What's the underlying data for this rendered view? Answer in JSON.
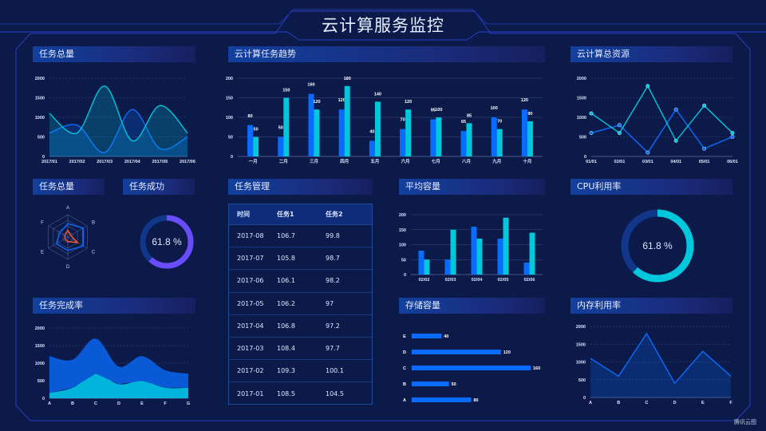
{
  "header": {
    "title": "云计算服务监控"
  },
  "panels": {
    "p1": "任务总量",
    "p2": "云计算任务趋势",
    "p3": "云计算总资源",
    "p4": "任务总量",
    "p5": "任务成功",
    "p6": "任务管理",
    "p7": "平均容量",
    "p8": "CPU利用率",
    "p9": "任务完成率",
    "p10": "存储容量",
    "p11": "内存利用率"
  },
  "table": {
    "headers": [
      "时间",
      "任务1",
      "任务2"
    ],
    "rows": [
      [
        "2017-08",
        "106.7",
        "99.8"
      ],
      [
        "2017-07",
        "105.8",
        "98.7"
      ],
      [
        "2017-06",
        "106.1",
        "98.2"
      ],
      [
        "2017-05",
        "106.2",
        "97"
      ],
      [
        "2017-04",
        "106.8",
        "97.2"
      ],
      [
        "2017-03",
        "108.4",
        "97.7"
      ],
      [
        "2017-02",
        "109.3",
        "100.1"
      ],
      [
        "2017-01",
        "108.5",
        "104.5"
      ]
    ]
  },
  "brand": "腾讯云图",
  "colors": {
    "blue": "#0a6cff",
    "cyan": "#00c8dc",
    "orange": "#ff5a2a",
    "purple": "#6a4cff",
    "bg": "#0c1a4a"
  },
  "chart_data": [
    {
      "id": "task-total-line",
      "type": "area",
      "smooth": true,
      "categories": [
        "2017/01",
        "2017/02",
        "2017/03",
        "2017/04",
        "2017/05",
        "2017/06"
      ],
      "yticks": [
        "0",
        "500",
        "1000",
        "1500",
        "2000"
      ],
      "ylim": [
        0,
        2000
      ],
      "grid": true,
      "series": [
        {
          "values": [
            600,
            800,
            100,
            1200,
            200,
            500
          ],
          "color": "#0a6cff"
        },
        {
          "values": [
            1100,
            600,
            1800,
            400,
            1300,
            600
          ],
          "color": "#00c8dc"
        }
      ]
    },
    {
      "id": "task-trend-bar",
      "type": "bar",
      "categories": [
        "一月",
        "二月",
        "三月",
        "四月",
        "五月",
        "六月",
        "七月",
        "八月",
        "九月",
        "十月"
      ],
      "yticks": [
        "0",
        "50",
        "100",
        "150",
        "200"
      ],
      "ylim": [
        0,
        200
      ],
      "grid": true,
      "labels": true,
      "series": [
        {
          "values": [
            80,
            50,
            160,
            120,
            40,
            70,
            95,
            65,
            100,
            120
          ],
          "color": "#0a6cff"
        },
        {
          "values": [
            50,
            150,
            120,
            180,
            140,
            120,
            100,
            85,
            70,
            90
          ],
          "color": "#00c8dc"
        }
      ]
    },
    {
      "id": "total-resource-line",
      "type": "line",
      "categories": [
        "01/01",
        "02/01",
        "03/01",
        "04/01",
        "05/01",
        "06/01"
      ],
      "yticks": [
        "0",
        "500",
        "1000",
        "1500",
        "2000"
      ],
      "ylim": [
        0,
        2000
      ],
      "grid": true,
      "markers": true,
      "series": [
        {
          "values": [
            600,
            800,
            100,
            1200,
            200,
            500
          ],
          "color": "#0a6cff"
        },
        {
          "values": [
            1100,
            600,
            1800,
            400,
            1300,
            600
          ],
          "color": "#00c8dc"
        }
      ]
    },
    {
      "id": "task-radar",
      "type": "radar",
      "indicators": [
        "A",
        "B",
        "C",
        "D",
        "E",
        "F"
      ],
      "max": 100,
      "series": [
        {
          "values": [
            60,
            80,
            80,
            60,
            60,
            40
          ],
          "color": "#0a6cff"
        },
        {
          "values": [
            30,
            15,
            50,
            20,
            15,
            15
          ],
          "color": "#ff5a2a"
        }
      ]
    },
    {
      "id": "task-success-donut",
      "type": "pie",
      "value": 61.8,
      "label": "61.8 %",
      "color": "#6a4cff"
    },
    {
      "id": "avg-capacity-bar",
      "type": "bar",
      "categories": [
        "02/02",
        "02/03",
        "02/04",
        "02/05",
        "02/06"
      ],
      "yticks": [
        "0",
        "50",
        "100",
        "150",
        "200"
      ],
      "ylim": [
        0,
        200
      ],
      "grid": true,
      "series": [
        {
          "values": [
            80,
            50,
            160,
            120,
            40
          ],
          "color": "#0a6cff"
        },
        {
          "values": [
            50,
            150,
            120,
            190,
            140
          ],
          "color": "#00c8dc"
        }
      ]
    },
    {
      "id": "cpu-donut",
      "type": "pie",
      "value": 61.8,
      "label": "61.8 %",
      "color": "#00c8dc"
    },
    {
      "id": "completion-area",
      "type": "area",
      "stacked": true,
      "smooth": true,
      "categories": [
        "A",
        "B",
        "C",
        "D",
        "E",
        "F",
        "G"
      ],
      "yticks": [
        "0",
        "500",
        "1000",
        "1500",
        "2000"
      ],
      "ylim": [
        0,
        2000
      ],
      "grid": true,
      "series": [
        {
          "values": [
            150,
            300,
            700,
            400,
            500,
            300,
            300
          ],
          "color": "#00b4dc"
        },
        {
          "values": [
            1050,
            800,
            1000,
            500,
            700,
            500,
            400
          ],
          "color": "#0a5ad8"
        }
      ]
    },
    {
      "id": "storage-hbar",
      "type": "bar",
      "orientation": "horizontal",
      "categories": [
        "A",
        "B",
        "C",
        "D",
        "E"
      ],
      "xlim": [
        0,
        160
      ],
      "labels": true,
      "series": [
        {
          "values": [
            80,
            50,
            160,
            120,
            40
          ],
          "color": "#0a6cff"
        }
      ]
    },
    {
      "id": "memory-area",
      "type": "area",
      "categories": [
        "A",
        "B",
        "C",
        "D",
        "E",
        "F"
      ],
      "yticks": [
        "0",
        "500",
        "1000",
        "1500",
        "2000"
      ],
      "ylim": [
        0,
        2000
      ],
      "grid": true,
      "series": [
        {
          "values": [
            1100,
            600,
            1800,
            400,
            1300,
            600
          ],
          "color": "#0a6cff"
        }
      ]
    }
  ]
}
